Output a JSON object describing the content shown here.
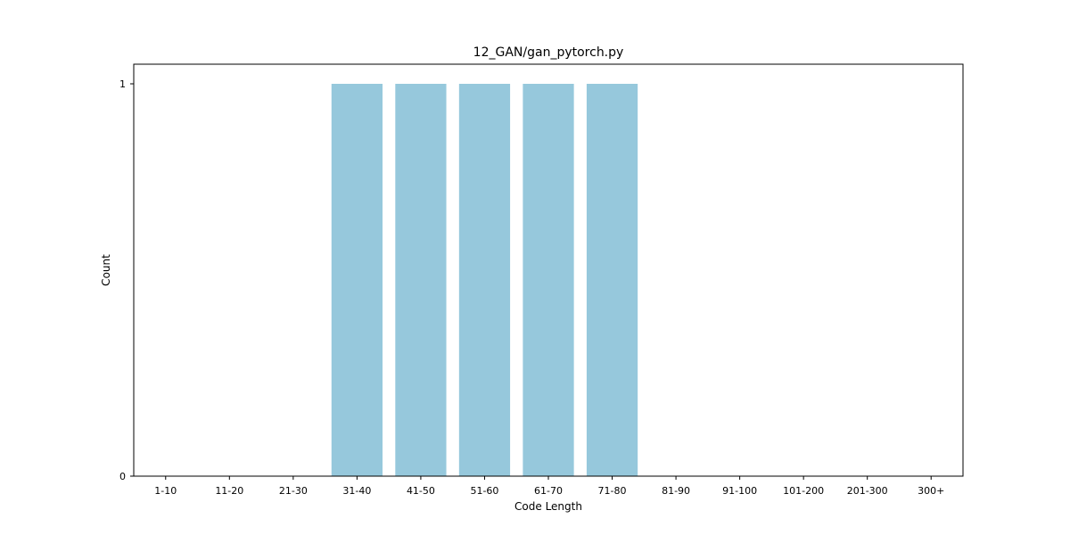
{
  "chart_data": {
    "type": "bar",
    "title": "12_GAN/gan_pytorch.py",
    "xlabel": "Code Length",
    "ylabel": "Count",
    "categories": [
      "1-10",
      "11-20",
      "21-30",
      "31-40",
      "41-50",
      "51-60",
      "61-70",
      "71-80",
      "81-90",
      "91-100",
      "101-200",
      "201-300",
      "300+"
    ],
    "values": [
      0,
      0,
      0,
      1,
      1,
      1,
      1,
      1,
      0,
      0,
      0,
      0,
      0
    ],
    "ylim": [
      0,
      1.05
    ],
    "yticks": [
      0,
      1
    ],
    "grid": false,
    "legend": "none",
    "colors": {
      "bar": "#96c8dc",
      "axis": "#000000",
      "background": "#ffffff"
    }
  }
}
